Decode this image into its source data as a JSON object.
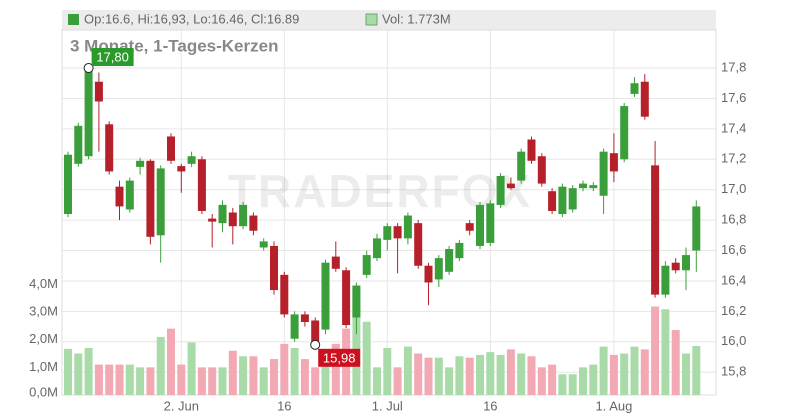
{
  "chart_data": {
    "type": "candlestick",
    "header": {
      "ohlc": "Op:16.6, Hi:16,93, Lo:16.46, Cl:16.89",
      "vol": "Vol: 1.773M"
    },
    "subtitle": "3 Monate, 1-Tages-Kerzen",
    "watermark": "TRADERFOX",
    "up_color": "#3a9e3a",
    "down_color": "#b5202a",
    "volume_up_color": "#a8dba8",
    "volume_down_color": "#f2a9b3",
    "series": {
      "open": [
        16.84,
        17.17,
        17.22,
        17.71,
        17.43,
        17.02,
        16.87,
        17.15,
        17.19,
        16.7,
        17.35,
        17.155,
        17.17,
        17.2,
        16.81,
        16.78,
        16.85,
        16.76,
        16.83,
        16.62,
        16.63,
        16.44,
        16.02,
        16.18,
        16.14,
        16.08,
        16.56,
        16.47,
        16.16,
        16.44,
        16.55,
        16.67,
        16.76,
        16.68,
        16.78,
        16.5,
        16.41,
        16.46,
        16.55,
        16.78,
        16.63,
        16.65,
        16.9,
        17.04,
        17.06,
        17.33,
        17.22,
        16.99,
        16.84,
        16.87,
        17.01,
        17.01,
        16.96,
        17.24,
        17.2,
        17.63,
        17.71,
        17.16,
        16.31,
        16.52,
        16.47,
        16.6
      ],
      "high": [
        17.25,
        17.44,
        17.8,
        17.77,
        17.45,
        17.06,
        17.08,
        17.21,
        17.2,
        17.16,
        17.37,
        17.17,
        17.25,
        17.22,
        16.84,
        16.93,
        16.88,
        16.92,
        16.85,
        16.68,
        16.66,
        16.46,
        16.2,
        16.2,
        16.16,
        16.54,
        16.66,
        16.49,
        16.39,
        16.6,
        16.71,
        16.78,
        16.78,
        16.85,
        16.8,
        16.52,
        16.57,
        16.63,
        16.67,
        16.8,
        16.92,
        16.93,
        17.11,
        17.08,
        17.27,
        17.35,
        17.24,
        17.01,
        17.04,
        17.03,
        17.06,
        17.05,
        17.27,
        17.37,
        17.57,
        17.74,
        17.76,
        17.32,
        16.53,
        16.55,
        16.62,
        16.93
      ],
      "low": [
        16.82,
        17.15,
        17.2,
        17.25,
        17.1,
        16.8,
        16.85,
        17.1,
        16.64,
        16.52,
        17.17,
        16.98,
        17.15,
        16.84,
        16.62,
        16.72,
        16.64,
        16.74,
        16.7,
        16.6,
        16.31,
        16.16,
        16.0,
        16.1,
        15.98,
        16.05,
        16.46,
        16.09,
        16.05,
        16.42,
        16.53,
        16.6,
        16.45,
        16.64,
        16.48,
        16.24,
        16.36,
        16.44,
        16.53,
        16.7,
        16.61,
        16.63,
        16.88,
        17.0,
        17.04,
        17.17,
        17.02,
        16.84,
        16.82,
        16.85,
        16.99,
        16.99,
        16.84,
        17.05,
        17.18,
        17.61,
        17.46,
        16.29,
        16.29,
        16.45,
        16.34,
        16.46
      ],
      "close": [
        17.23,
        17.42,
        17.78,
        17.58,
        17.12,
        16.89,
        17.06,
        17.19,
        16.69,
        17.14,
        17.19,
        17.12,
        17.22,
        16.86,
        16.79,
        16.9,
        16.76,
        16.9,
        16.73,
        16.66,
        16.34,
        16.18,
        16.18,
        16.13,
        16.0,
        16.52,
        16.48,
        16.11,
        16.37,
        16.57,
        16.68,
        16.76,
        16.68,
        16.83,
        16.5,
        16.39,
        16.55,
        16.61,
        16.65,
        16.73,
        16.9,
        16.91,
        17.09,
        17.01,
        17.25,
        17.19,
        17.04,
        16.86,
        17.02,
        17.01,
        17.04,
        17.03,
        17.25,
        17.12,
        17.55,
        17.7,
        17.48,
        16.31,
        16.5,
        16.47,
        16.57,
        16.89
      ],
      "volume": [
        1.67,
        1.5,
        1.7,
        1.1,
        1.1,
        1.1,
        1.1,
        1.0,
        1.0,
        2.1,
        2.4,
        1.1,
        1.9,
        1.0,
        1.0,
        1.0,
        1.6,
        1.4,
        1.4,
        1.0,
        1.3,
        1.85,
        1.7,
        1.3,
        1.0,
        1.55,
        1.85,
        2.4,
        3.75,
        2.65,
        1.0,
        1.7,
        1.0,
        1.75,
        1.5,
        1.35,
        1.35,
        1.0,
        1.4,
        1.35,
        1.45,
        1.55,
        1.45,
        1.65,
        1.5,
        1.4,
        1.0,
        1.1,
        0.75,
        0.75,
        1.0,
        1.1,
        1.75,
        1.45,
        1.5,
        1.75,
        1.65,
        3.2,
        3.1,
        2.35,
        1.5,
        1.773
      ]
    },
    "ylim": [
      15.65,
      18.05
    ],
    "yticks": [
      {
        "value": 15.8,
        "label": "15,8"
      },
      {
        "value": 16.0,
        "label": "16,0"
      },
      {
        "value": 16.2,
        "label": "16,2"
      },
      {
        "value": 16.4,
        "label": "16,4"
      },
      {
        "value": 16.6,
        "label": "16,6"
      },
      {
        "value": 16.8,
        "label": "16,8"
      },
      {
        "value": 17.0,
        "label": "17,0"
      },
      {
        "value": 17.2,
        "label": "17,2"
      },
      {
        "value": 17.4,
        "label": "17,4"
      },
      {
        "value": 17.6,
        "label": "17,6"
      },
      {
        "value": 17.8,
        "label": "17,8"
      }
    ],
    "vlim": [
      0,
      13.2
    ],
    "vticks": [
      {
        "value": 0,
        "label": "0,0M"
      },
      {
        "value": 1,
        "label": "1,0M"
      },
      {
        "value": 2,
        "label": "2,0M"
      },
      {
        "value": 3,
        "label": "3,0M"
      },
      {
        "value": 4,
        "label": "4,0M"
      }
    ],
    "xticks": [
      {
        "value": 11,
        "label": "2. Jun"
      },
      {
        "value": 21,
        "label": "16"
      },
      {
        "value": 31,
        "label": "1. Jul"
      },
      {
        "value": 41,
        "label": "16"
      },
      {
        "value": 53,
        "label": "1. Aug"
      }
    ],
    "annotations": [
      {
        "index": 2,
        "value": 17.8,
        "label": "17,80",
        "color": "#2a9a2a"
      },
      {
        "index": 24,
        "value": 15.98,
        "label": "15,98",
        "color": "#cc1020"
      }
    ],
    "grid": true
  }
}
